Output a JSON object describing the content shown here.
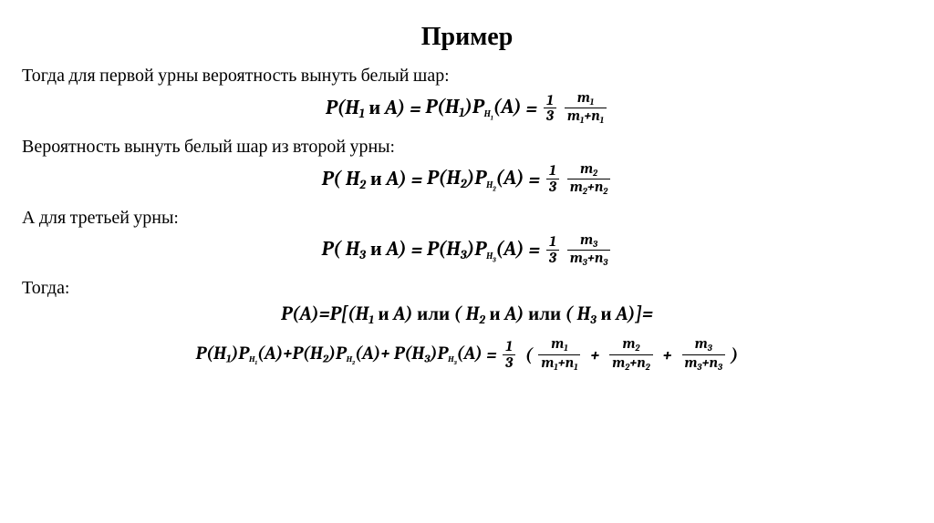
{
  "title": "Пример",
  "intro": {
    "line1": "Тогда для первой урны вероятность вынуть белый шар:",
    "line2": "Вероятность вынуть белый шар из второй урны:",
    "line3": "А для третьей урны:",
    "line4": "Тогда:"
  },
  "math": {
    "P": "P",
    "H": "H",
    "A": "A",
    "and": " и ",
    "or": " или ",
    "one_third_num": "1",
    "one_third_den": "3",
    "m": "m",
    "n": "n",
    "plus": "+",
    "eq": " = ",
    "open": "(",
    "close": ")",
    "openb": "[(",
    "closeb": ")]=",
    "sub1": "1",
    "sub2": "2",
    "sub3": "3"
  },
  "eq4_lead": "P(A)=P",
  "colors": {
    "text": "#000000",
    "background": "#ffffff"
  },
  "typography": {
    "title_fontsize": 28,
    "body_fontsize": 20,
    "eq_fontsize": 22,
    "eq_weight": "bold",
    "eq_style": "italic"
  }
}
